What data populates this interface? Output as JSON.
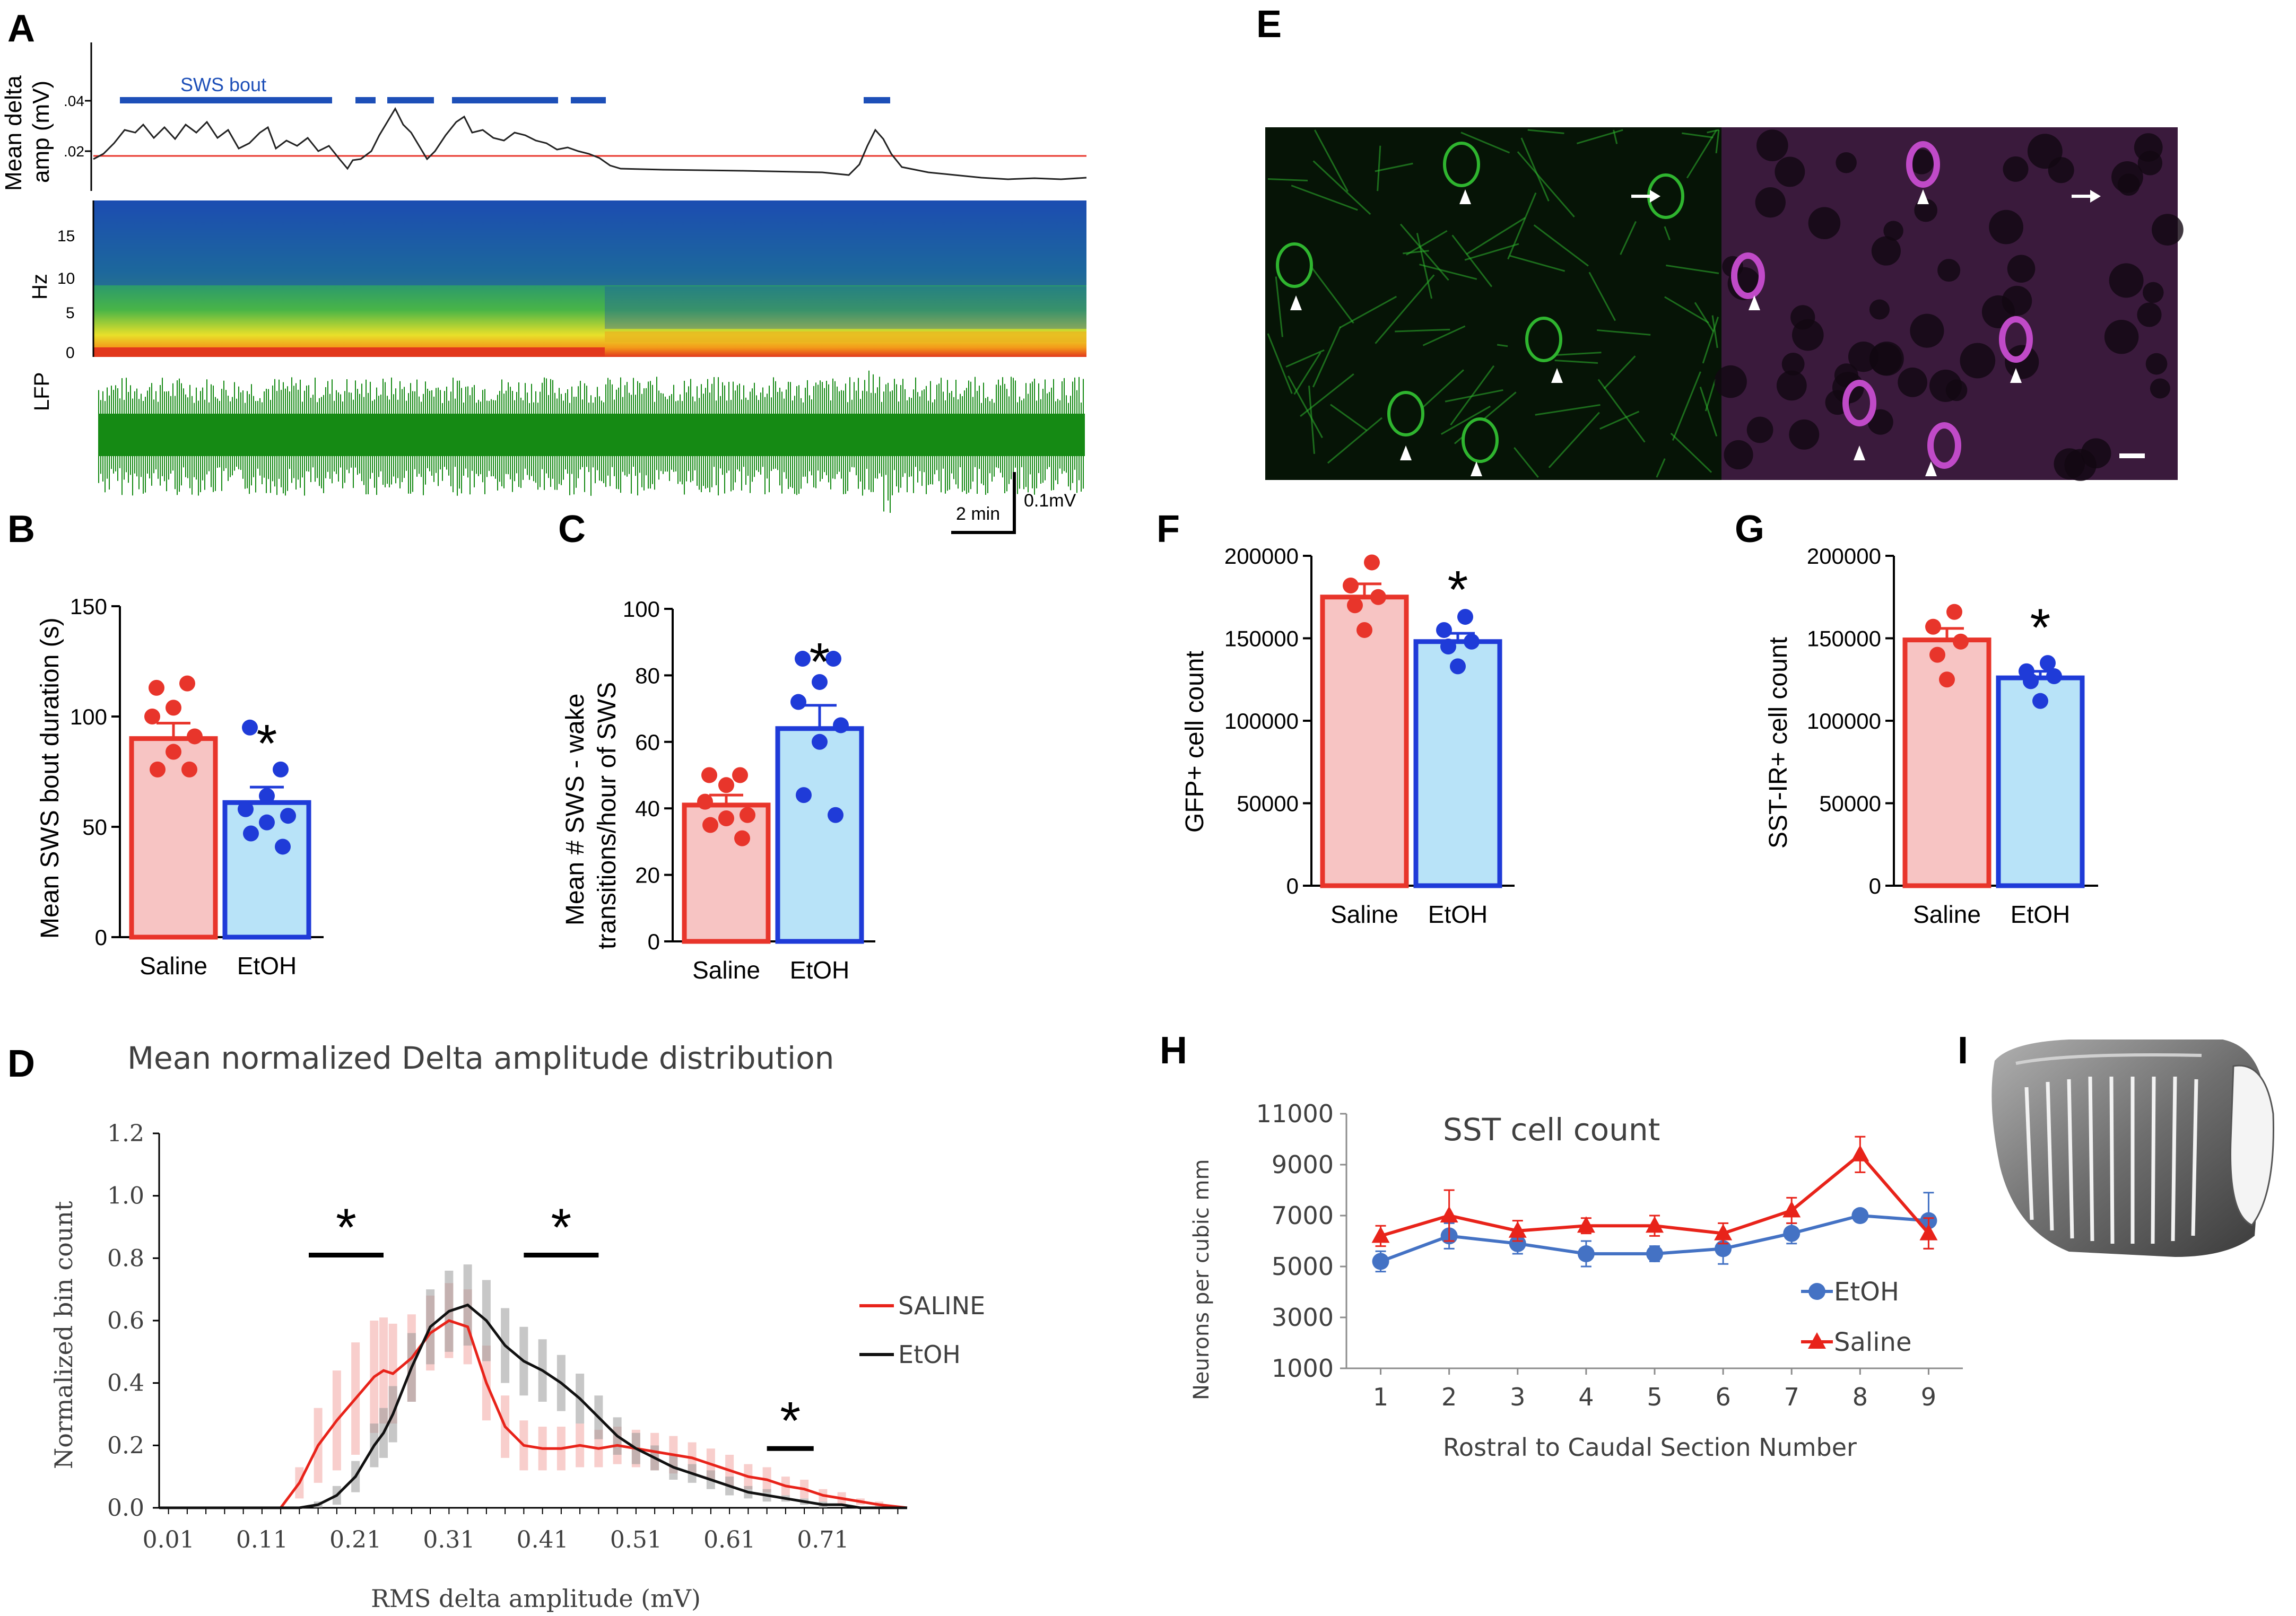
{
  "colors": {
    "saline_red": "#e8352b",
    "saline_fill": "#f7c4c3",
    "etoh_blue": "#1f3bd8",
    "etoh_fill": "#b8e3f8",
    "line_blue": "#4472c4",
    "line_red": "#e8231a",
    "lfp_green": "#158a14",
    "gfp_green": "#2fb52f",
    "sst_magenta": "#c04ac8",
    "sws_bar": "#1d4fb8"
  },
  "panelA": {
    "letter": "A",
    "delta_ylabel_1": "Mean delta",
    "delta_ylabel_2": "amp (mV)",
    "delta_ticks": [
      ".04",
      ".02"
    ],
    "sws_label": "SWS bout",
    "spec_ylabel": "Hz",
    "spec_ticks": [
      "15",
      "10",
      "5",
      "0"
    ],
    "lfp_label": "LFP",
    "scale_time": "2 min",
    "scale_volt": "0.1mV"
  },
  "panelB": {
    "letter": "B",
    "chart_data": {
      "type": "bar",
      "categories": [
        "Saline",
        "EtOH"
      ],
      "values": [
        90,
        61
      ],
      "sem": [
        7,
        7
      ],
      "points": [
        [
          113,
          115,
          104,
          100,
          91,
          84,
          76,
          76
        ],
        [
          95,
          76,
          64,
          58,
          55,
          52,
          47,
          41
        ]
      ],
      "ylabel": "Mean SWS bout duration (s)",
      "ylim": [
        0,
        150
      ],
      "yticks": [
        0,
        50,
        100,
        150
      ],
      "significance": [
        "",
        "*"
      ]
    }
  },
  "panelC": {
    "letter": "C",
    "chart_data": {
      "type": "bar",
      "categories": [
        "Saline",
        "EtOH"
      ],
      "values": [
        41,
        64
      ],
      "sem": [
        3,
        7
      ],
      "points": [
        [
          50,
          50,
          47,
          42,
          38,
          37,
          35,
          31
        ],
        [
          85,
          85,
          78,
          72,
          65,
          60,
          44,
          38
        ]
      ],
      "ylabel_1": "Mean # SWS - wake",
      "ylabel_2": "transitions/hour of SWS",
      "ylim": [
        0,
        100
      ],
      "yticks": [
        0,
        20,
        40,
        60,
        80,
        100
      ],
      "significance": [
        "",
        "*"
      ]
    }
  },
  "panelD": {
    "letter": "D",
    "chart_data": {
      "type": "line",
      "title": "Mean normalized Delta amplitude distribution",
      "xlabel": "RMS delta amplitude (mV)",
      "ylabel": "Normalized bin count",
      "xlim": [
        0.0,
        0.8
      ],
      "ylim": [
        0,
        1.2
      ],
      "xticks": [
        "0.01",
        "0.11",
        "0.21",
        "0.31",
        "0.41",
        "0.51",
        "0.61",
        "0.71"
      ],
      "yticks": [
        "0.0",
        "0.2",
        "0.4",
        "0.6",
        "0.8",
        "1.0",
        "1.2"
      ],
      "x": [
        0.0,
        0.05,
        0.1,
        0.13,
        0.15,
        0.17,
        0.19,
        0.21,
        0.23,
        0.24,
        0.25,
        0.27,
        0.29,
        0.31,
        0.33,
        0.35,
        0.37,
        0.39,
        0.41,
        0.43,
        0.45,
        0.47,
        0.49,
        0.51,
        0.53,
        0.55,
        0.57,
        0.59,
        0.61,
        0.63,
        0.65,
        0.67,
        0.69,
        0.71,
        0.73,
        0.75,
        0.77,
        0.8
      ],
      "series": [
        {
          "name": "SALINE",
          "values": [
            0.0,
            0.0,
            0.0,
            0.0,
            0.08,
            0.2,
            0.28,
            0.35,
            0.42,
            0.44,
            0.43,
            0.48,
            0.56,
            0.6,
            0.58,
            0.4,
            0.26,
            0.2,
            0.19,
            0.19,
            0.2,
            0.19,
            0.2,
            0.19,
            0.18,
            0.17,
            0.16,
            0.14,
            0.12,
            0.1,
            0.09,
            0.07,
            0.06,
            0.04,
            0.03,
            0.02,
            0.01,
            0.0
          ],
          "band": [
            0,
            0,
            0,
            0,
            0.05,
            0.12,
            0.16,
            0.18,
            0.18,
            0.17,
            0.16,
            0.14,
            0.12,
            0.12,
            0.12,
            0.12,
            0.1,
            0.08,
            0.07,
            0.07,
            0.07,
            0.06,
            0.06,
            0.06,
            0.06,
            0.06,
            0.05,
            0.05,
            0.05,
            0.04,
            0.04,
            0.03,
            0.03,
            0.02,
            0.02,
            0.01,
            0.01,
            0
          ]
        },
        {
          "name": "EtOH",
          "values": [
            0.0,
            0.0,
            0.0,
            0.0,
            0.0,
            0.01,
            0.04,
            0.1,
            0.2,
            0.24,
            0.3,
            0.45,
            0.58,
            0.63,
            0.65,
            0.6,
            0.52,
            0.47,
            0.44,
            0.4,
            0.35,
            0.29,
            0.23,
            0.19,
            0.16,
            0.13,
            0.11,
            0.09,
            0.07,
            0.05,
            0.04,
            0.03,
            0.02,
            0.01,
            0.01,
            0.0,
            0.0,
            0.0
          ],
          "band": [
            0,
            0,
            0,
            0,
            0,
            0.01,
            0.03,
            0.05,
            0.07,
            0.08,
            0.09,
            0.11,
            0.12,
            0.13,
            0.13,
            0.13,
            0.12,
            0.11,
            0.1,
            0.09,
            0.08,
            0.07,
            0.06,
            0.05,
            0.04,
            0.04,
            0.03,
            0.03,
            0.03,
            0.02,
            0.02,
            0.01,
            0.01,
            0.01,
            0,
            0,
            0,
            0
          ]
        }
      ],
      "significance_ranges": [
        [
          0.16,
          0.24
        ],
        [
          0.39,
          0.47
        ],
        [
          0.65,
          0.7
        ]
      ],
      "significance_label": "*"
    }
  },
  "panelE": {
    "letter": "E"
  },
  "panelF": {
    "letter": "F",
    "chart_data": {
      "type": "bar",
      "categories": [
        "Saline",
        "EtOH"
      ],
      "values": [
        175000,
        148000
      ],
      "sem": [
        8000,
        5000
      ],
      "points": [
        [
          196000,
          182000,
          175000,
          170000,
          155000
        ],
        [
          163000,
          155000,
          148000,
          145000,
          133000
        ]
      ],
      "ylabel": "GFP+ cell count",
      "ylim": [
        0,
        200000
      ],
      "yticks": [
        0,
        50000,
        100000,
        150000,
        200000
      ],
      "significance": [
        "",
        "*"
      ]
    }
  },
  "panelG": {
    "letter": "G",
    "chart_data": {
      "type": "bar",
      "categories": [
        "Saline",
        "EtOH"
      ],
      "values": [
        149000,
        126000
      ],
      "sem": [
        7000,
        4000
      ],
      "points": [
        [
          166000,
          157000,
          148000,
          140000,
          125000
        ],
        [
          135000,
          130000,
          127000,
          124000,
          112000
        ]
      ],
      "ylabel": "SST-IR+ cell count",
      "ylim": [
        0,
        200000
      ],
      "yticks": [
        0,
        50000,
        100000,
        150000,
        200000
      ],
      "significance": [
        "",
        "*"
      ]
    }
  },
  "panelH": {
    "letter": "H",
    "chart_data": {
      "type": "line",
      "title": "SST cell count",
      "xlabel": "Rostral to Caudal Section Number",
      "ylabel": "Neurons per cubic mm",
      "categories": [
        1,
        2,
        3,
        4,
        5,
        6,
        7,
        8,
        9
      ],
      "ylim": [
        1000,
        11000
      ],
      "yticks": [
        1000,
        3000,
        5000,
        7000,
        9000,
        11000
      ],
      "series": [
        {
          "name": "EtOH",
          "values": [
            5200,
            6200,
            5900,
            5500,
            5500,
            5700,
            6300,
            7000,
            6800
          ],
          "err": [
            400,
            500,
            400,
            500,
            300,
            600,
            400,
            200,
            1100
          ]
        },
        {
          "name": "Saline",
          "values": [
            6200,
            7000,
            6400,
            6600,
            6600,
            6300,
            7200,
            9400,
            6300
          ],
          "err": [
            400,
            1000,
            400,
            300,
            400,
            400,
            500,
            700,
            600
          ]
        }
      ]
    }
  },
  "panelI": {
    "letter": "I"
  }
}
